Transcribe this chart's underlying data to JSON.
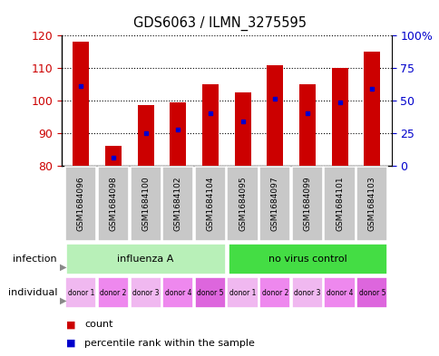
{
  "title": "GDS6063 / ILMN_3275595",
  "samples": [
    "GSM1684096",
    "GSM1684098",
    "GSM1684100",
    "GSM1684102",
    "GSM1684104",
    "GSM1684095",
    "GSM1684097",
    "GSM1684099",
    "GSM1684101",
    "GSM1684103"
  ],
  "counts": [
    118,
    86,
    98.5,
    99.5,
    105,
    102.5,
    111,
    105,
    110,
    115
  ],
  "percentile_values": [
    104.5,
    82.5,
    90,
    91,
    96,
    93.5,
    100.5,
    96,
    99.5,
    103.5
  ],
  "ylim": [
    80,
    120
  ],
  "yticks_left": [
    80,
    90,
    100,
    110,
    120
  ],
  "yticks_right_labels": [
    "0",
    "25",
    "50",
    "75",
    "100%"
  ],
  "yticks_right_positions": [
    80,
    90,
    100,
    110,
    120
  ],
  "bar_color": "#cc0000",
  "percentile_color": "#0000cc",
  "bar_bottom": 80,
  "infection_groups": [
    {
      "label": "influenza A",
      "start": 0,
      "end": 5,
      "color": "#b8f0b8"
    },
    {
      "label": "no virus control",
      "start": 5,
      "end": 10,
      "color": "#44dd44"
    }
  ],
  "individual_labels": [
    "donor 1",
    "donor 2",
    "donor 3",
    "donor 4",
    "donor 5",
    "donor 1",
    "donor 2",
    "donor 3",
    "donor 4",
    "donor 5"
  ],
  "individual_colors": [
    "#f0b8f0",
    "#ee88ee",
    "#f0b8f0",
    "#ee88ee",
    "#dd66dd",
    "#f0b8f0",
    "#ee88ee",
    "#f0b8f0",
    "#ee88ee",
    "#dd66dd"
  ],
  "tick_color_left": "#cc0000",
  "tick_color_right": "#0000cc",
  "legend_count_label": "count",
  "legend_percentile_label": "percentile rank within the sample",
  "bg_color": "#ffffff",
  "sample_bg_color": "#c8c8c8",
  "sample_text_size": 6.5,
  "bar_width": 0.5
}
